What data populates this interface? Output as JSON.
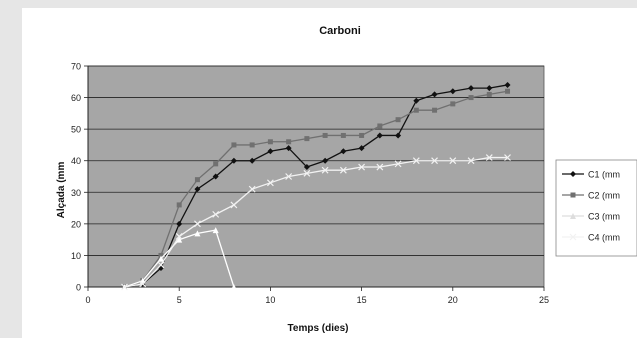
{
  "chart_data": {
    "type": "line",
    "title": "Carboni",
    "xlabel": "Temps (dies)",
    "ylabel": "Alçada (mm",
    "xlim": [
      0,
      25
    ],
    "ylim": [
      0,
      70
    ],
    "xticks": [
      0,
      5,
      10,
      15,
      20,
      25
    ],
    "yticks": [
      0,
      10,
      20,
      30,
      40,
      50,
      60,
      70
    ],
    "grid": "horizontal",
    "legend_position": "right",
    "plot_background": "#a6a6a6",
    "series": [
      {
        "name": "C1 (mm",
        "color": "#111111",
        "marker": "diamond",
        "x": [
          2,
          3,
          4,
          5,
          6,
          7,
          8,
          9,
          10,
          11,
          12,
          13,
          14,
          15,
          16,
          17,
          18,
          19,
          20,
          21,
          22,
          23
        ],
        "y": [
          0,
          1,
          6,
          20,
          31,
          35,
          40,
          40,
          43,
          44,
          38,
          40,
          43,
          44,
          48,
          48,
          59,
          61,
          62,
          63,
          63,
          64
        ]
      },
      {
        "name": "C2 (mm",
        "color": "#707070",
        "marker": "square",
        "x": [
          2,
          3,
          4,
          5,
          6,
          7,
          8,
          9,
          10,
          11,
          12,
          13,
          14,
          15,
          16,
          17,
          18,
          19,
          20,
          21,
          22,
          23
        ],
        "y": [
          0,
          2,
          10,
          26,
          34,
          39,
          45,
          45,
          46,
          46,
          47,
          48,
          48,
          48,
          51,
          53,
          56,
          56,
          58,
          60,
          61,
          62
        ]
      },
      {
        "name": "C3 (mm",
        "color": "#ffffff",
        "marker": "triangle",
        "x": [
          2,
          3,
          4,
          5,
          6,
          7,
          8
        ],
        "y": [
          0,
          2,
          9,
          15,
          17,
          18,
          0
        ]
      },
      {
        "name": "C4 (mm",
        "color": "#f2f2f2",
        "marker": "x",
        "x": [
          2,
          3,
          4,
          5,
          6,
          7,
          8,
          9,
          10,
          11,
          12,
          13,
          14,
          15,
          16,
          17,
          18,
          19,
          20,
          21,
          22,
          23
        ],
        "y": [
          0,
          1,
          7,
          16,
          20,
          23,
          26,
          31,
          33,
          35,
          36,
          37,
          37,
          38,
          38,
          39,
          40,
          40,
          40,
          40,
          41,
          41
        ]
      }
    ]
  }
}
